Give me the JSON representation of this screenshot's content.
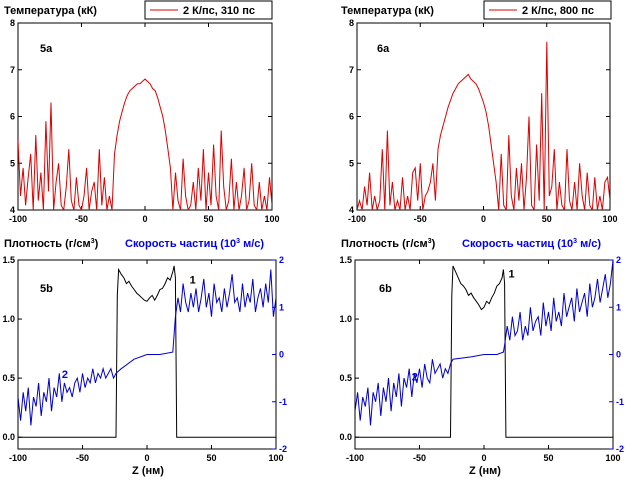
{
  "figure": {
    "colors": {
      "temperature": "#dd0000",
      "density": "#000000",
      "velocity": "#0000cc",
      "axis_blue": "#0000ee"
    }
  },
  "top_titles": [
    "Температура (кК)",
    "Температура (кК)"
  ],
  "bottom_titles": [
    {
      "density": "Плотность (г/см",
      "density_sup": "3",
      "density_tail": ")",
      "velocity": "Скорость частиц (10",
      "velocity_sup": "3",
      "velocity_tail": " м/с)"
    },
    {
      "density": "Плотность (г/см",
      "density_sup": "3",
      "density_tail": ")",
      "velocity": "Скорость частиц (10",
      "velocity_sup": "3",
      "velocity_tail": " м/с)"
    }
  ],
  "xlabel": "Z (нм)",
  "chart_data": [
    {
      "id": "5a",
      "type": "line",
      "panel_label": "5a",
      "legend": "2 К/пс, 310 пс",
      "x_ticks": [
        "-100",
        "-50",
        "0",
        "50",
        "100"
      ],
      "y_ticks": [
        "4",
        "5",
        "6",
        "7",
        "8"
      ],
      "xlim": [
        -100,
        100
      ],
      "ylim": [
        4,
        8
      ],
      "series": [
        {
          "name": "2 К/пс, 310 пс",
          "color": "#dd0000",
          "x": [
            -100,
            -98,
            -96,
            -94,
            -92,
            -90,
            -88,
            -86,
            -84,
            -82,
            -80,
            -78,
            -76,
            -74,
            -72,
            -70,
            -68,
            -66,
            -64,
            -62,
            -60,
            -58,
            -56,
            -54,
            -52,
            -50,
            -48,
            -46,
            -44,
            -42,
            -40,
            -38,
            -36,
            -34,
            -32,
            -30,
            -28,
            -26,
            -24,
            -22,
            -20,
            -18,
            -16,
            -14,
            -12,
            -10,
            -8,
            -6,
            -4,
            -2,
            0,
            2,
            4,
            6,
            8,
            10,
            12,
            14,
            16,
            18,
            20,
            22,
            24,
            26,
            28,
            30,
            32,
            34,
            36,
            38,
            40,
            42,
            44,
            46,
            48,
            50,
            52,
            54,
            56,
            58,
            60,
            62,
            64,
            66,
            68,
            70,
            72,
            74,
            76,
            78,
            80,
            82,
            84,
            86,
            88,
            90,
            92,
            94,
            96,
            98,
            100
          ],
          "y": [
            5.5,
            4.3,
            4.9,
            4.1,
            4.7,
            5.2,
            4.0,
            5.6,
            4.2,
            4.8,
            4.0,
            5.9,
            4.4,
            6.3,
            4.0,
            4.6,
            5.0,
            4.1,
            4.0,
            4.5,
            5.3,
            4.2,
            4.0,
            4.7,
            4.1,
            4.0,
            4.3,
            4.9,
            4.0,
            4.4,
            4.6,
            4.0,
            5.3,
            4.1,
            4.7,
            4.0,
            4.3,
            4.0,
            5.2,
            5.6,
            5.9,
            6.1,
            6.3,
            6.45,
            6.55,
            6.6,
            6.65,
            6.7,
            6.7,
            6.75,
            6.8,
            6.75,
            6.7,
            6.6,
            6.55,
            6.4,
            6.2,
            6.0,
            5.7,
            5.3,
            4.9,
            4.0,
            4.8,
            4.2,
            4.0,
            5.1,
            4.3,
            4.0,
            4.1,
            4.6,
            4.0,
            4.9,
            4.2,
            5.3,
            4.0,
            4.8,
            4.1,
            5.4,
            4.3,
            4.0,
            5.7,
            4.5,
            4.0,
            4.2,
            5.1,
            4.0,
            4.6,
            4.0,
            4.3,
            4.9,
            4.0,
            4.2,
            5.0,
            4.1,
            4.0,
            4.6,
            4.0,
            4.3,
            4.0,
            4.7,
            4.1
          ]
        }
      ]
    },
    {
      "id": "6a",
      "type": "line",
      "panel_label": "6a",
      "legend": "2 К/пс, 800 пс",
      "x_ticks": [
        "-100",
        "-50",
        "0",
        "50",
        "100"
      ],
      "y_ticks": [
        "4",
        "5",
        "6",
        "7",
        "8"
      ],
      "xlim": [
        -100,
        100
      ],
      "ylim": [
        4,
        8
      ],
      "series": [
        {
          "name": "2 К/пс, 800 пс",
          "color": "#dd0000",
          "x": [
            -100,
            -98,
            -96,
            -94,
            -92,
            -90,
            -88,
            -86,
            -84,
            -82,
            -80,
            -78,
            -76,
            -74,
            -72,
            -70,
            -68,
            -66,
            -64,
            -62,
            -60,
            -58,
            -56,
            -54,
            -52,
            -50,
            -48,
            -46,
            -44,
            -42,
            -40,
            -38,
            -36,
            -34,
            -32,
            -30,
            -28,
            -26,
            -24,
            -22,
            -20,
            -18,
            -16,
            -14,
            -12,
            -10,
            -8,
            -6,
            -4,
            -2,
            0,
            2,
            4,
            6,
            8,
            10,
            12,
            14,
            16,
            18,
            20,
            22,
            24,
            26,
            28,
            30,
            32,
            34,
            36,
            38,
            40,
            42,
            44,
            46,
            48,
            50,
            52,
            54,
            56,
            58,
            60,
            62,
            64,
            66,
            68,
            70,
            72,
            74,
            76,
            78,
            80,
            82,
            84,
            86,
            88,
            90,
            92,
            94,
            96,
            98,
            100
          ],
          "y": [
            4.0,
            4.2,
            4.0,
            4.5,
            4.1,
            4.8,
            4.0,
            4.3,
            4.0,
            4.2,
            5.3,
            4.0,
            5.7,
            4.1,
            4.6,
            4.0,
            4.2,
            4.0,
            4.7,
            4.0,
            4.3,
            4.0,
            4.8,
            4.9,
            4.2,
            5.0,
            4.0,
            4.3,
            4.4,
            4.6,
            5.0,
            4.2,
            5.3,
            5.6,
            5.8,
            6.0,
            6.2,
            6.35,
            6.5,
            6.6,
            6.7,
            6.75,
            6.8,
            6.85,
            6.9,
            6.8,
            6.75,
            6.7,
            6.6,
            6.45,
            6.3,
            6.1,
            5.8,
            5.4,
            5.0,
            4.6,
            4.0,
            5.2,
            4.1,
            4.0,
            5.6,
            4.3,
            4.0,
            4.9,
            4.2,
            5.0,
            4.0,
            4.7,
            6.0,
            4.1,
            4.0,
            5.4,
            4.2,
            6.5,
            4.0,
            7.6,
            4.3,
            4.5,
            5.3,
            4.0,
            4.6,
            4.1,
            4.0,
            5.3,
            4.2,
            4.0,
            4.6,
            4.0,
            5.0,
            4.3,
            4.0,
            4.8,
            4.1,
            4.0,
            4.7,
            4.0,
            4.3,
            4.0,
            4.6,
            4.7,
            4.2
          ]
        }
      ]
    },
    {
      "id": "5b",
      "type": "line",
      "panel_label": "5b",
      "x_ticks": [
        "-100",
        "-50",
        "0",
        "50",
        "100"
      ],
      "y_left_ticks": [
        "0.0",
        "0.5",
        "1.0",
        "1.5"
      ],
      "y_right_ticks": [
        "-2",
        "-1",
        "0",
        "1",
        "2"
      ],
      "xlim": [
        -100,
        100
      ],
      "ylim_left": [
        -0.1,
        1.5
      ],
      "ylim_right": [
        -2,
        2
      ],
      "curve_labels": [
        {
          "text": "1",
          "x": 33,
          "y_left": 1.3,
          "axis": "left",
          "color": "#000000"
        },
        {
          "text": "2",
          "x": -66,
          "y_left": 0.5,
          "axis": "left",
          "color": "#0000ee"
        }
      ],
      "series": [
        {
          "name": "1",
          "axis": "left",
          "color": "#000000",
          "x": [
            -100,
            -80,
            -60,
            -40,
            -30,
            -24,
            -23,
            -22,
            -20,
            -18,
            -16,
            -14,
            -12,
            -10,
            -8,
            -6,
            -4,
            -2,
            0,
            2,
            4,
            6,
            8,
            10,
            12,
            14,
            16,
            18,
            20,
            21,
            22,
            23,
            30,
            40,
            60,
            80,
            100
          ],
          "y": [
            0.0,
            0.0,
            0.0,
            0.0,
            0.0,
            0.0,
            1.2,
            1.42,
            1.38,
            1.35,
            1.3,
            1.32,
            1.28,
            1.25,
            1.22,
            1.2,
            1.18,
            1.16,
            1.15,
            1.18,
            1.2,
            1.16,
            1.2,
            1.25,
            1.26,
            1.3,
            1.35,
            1.33,
            1.4,
            1.45,
            1.35,
            0.0,
            0.0,
            0.0,
            0.0,
            0.0,
            0.0
          ]
        },
        {
          "name": "2",
          "axis": "right",
          "color": "#0000cc",
          "x": [
            -100,
            -98,
            -96,
            -94,
            -92,
            -90,
            -88,
            -86,
            -84,
            -82,
            -80,
            -78,
            -76,
            -74,
            -72,
            -70,
            -68,
            -66,
            -64,
            -62,
            -60,
            -58,
            -56,
            -54,
            -52,
            -50,
            -48,
            -46,
            -44,
            -42,
            -40,
            -38,
            -36,
            -34,
            -32,
            -30,
            -28,
            -26,
            -24,
            -22,
            -20,
            -10,
            0,
            10,
            20,
            22,
            24,
            26,
            28,
            30,
            32,
            34,
            36,
            38,
            40,
            42,
            44,
            46,
            48,
            50,
            52,
            54,
            56,
            58,
            60,
            62,
            64,
            66,
            68,
            70,
            72,
            74,
            76,
            78,
            80,
            82,
            84,
            86,
            88,
            90,
            92,
            94,
            96,
            98,
            100
          ],
          "y": [
            -0.9,
            -1.4,
            -0.8,
            -1.2,
            -0.7,
            -1.5,
            -0.9,
            -1.1,
            -0.6,
            -1.3,
            -0.8,
            -1.0,
            -0.5,
            -1.2,
            -0.7,
            -0.9,
            -0.4,
            -1.0,
            -0.6,
            -0.8,
            -0.7,
            -0.9,
            -0.6,
            -0.5,
            -0.8,
            -0.4,
            -0.7,
            -0.5,
            -0.6,
            -0.3,
            -0.6,
            -0.4,
            -0.5,
            -0.3,
            -0.5,
            -0.4,
            -0.3,
            -0.5,
            -0.4,
            -0.35,
            -0.3,
            -0.1,
            0.0,
            0.0,
            0.05,
            0.8,
            1.2,
            0.9,
            1.5,
            1.1,
            0.9,
            1.3,
            1.0,
            1.4,
            0.9,
            1.2,
            1.6,
            1.0,
            1.3,
            0.8,
            1.5,
            1.1,
            1.2,
            0.9,
            1.4,
            1.0,
            1.3,
            1.7,
            1.1,
            1.2,
            0.9,
            1.5,
            1.0,
            1.3,
            1.1,
            1.6,
            0.9,
            1.2,
            1.4,
            1.0,
            1.5,
            1.1,
            1.8,
            0.8,
            1.2
          ]
        }
      ]
    },
    {
      "id": "6b",
      "type": "line",
      "panel_label": "6b",
      "x_ticks": [
        "-100",
        "-50",
        "0",
        "50",
        "100"
      ],
      "y_left_ticks": [
        "0.0",
        "0.5",
        "1.0",
        "1.5"
      ],
      "y_right_ticks": [
        "-2",
        "-1",
        "0",
        "1",
        "2"
      ],
      "xlim": [
        -100,
        100
      ],
      "ylim_left": [
        -0.1,
        1.5
      ],
      "ylim_right": [
        -2,
        2
      ],
      "curve_labels": [
        {
          "text": "1",
          "x": 19,
          "y_left": 1.35,
          "axis": "left",
          "color": "#000000"
        },
        {
          "text": "2",
          "x": -56,
          "y_left": 0.48,
          "axis": "left",
          "color": "#0000ee"
        }
      ],
      "series": [
        {
          "name": "1",
          "axis": "left",
          "color": "#000000",
          "x": [
            -100,
            -80,
            -60,
            -40,
            -28,
            -26,
            -25,
            -24,
            -22,
            -20,
            -18,
            -16,
            -14,
            -12,
            -10,
            -8,
            -6,
            -4,
            -2,
            0,
            2,
            4,
            6,
            8,
            10,
            12,
            14,
            15,
            16,
            17,
            30,
            50,
            80,
            100
          ],
          "y": [
            0.0,
            0.0,
            0.0,
            0.0,
            0.0,
            0.0,
            1.2,
            1.45,
            1.4,
            1.35,
            1.3,
            1.28,
            1.25,
            1.2,
            1.22,
            1.18,
            1.15,
            1.12,
            1.08,
            1.1,
            1.15,
            1.13,
            1.18,
            1.22,
            1.28,
            1.3,
            1.35,
            1.42,
            1.3,
            0.0,
            0.0,
            0.0,
            0.0,
            0.0
          ]
        },
        {
          "name": "2",
          "axis": "right",
          "color": "#0000cc",
          "x": [
            -100,
            -98,
            -96,
            -94,
            -92,
            -90,
            -88,
            -86,
            -84,
            -82,
            -80,
            -78,
            -76,
            -74,
            -72,
            -70,
            -68,
            -66,
            -64,
            -62,
            -60,
            -58,
            -56,
            -54,
            -52,
            -50,
            -48,
            -46,
            -44,
            -42,
            -40,
            -38,
            -36,
            -34,
            -32,
            -30,
            -28,
            -26,
            -24,
            -10,
            0,
            10,
            15,
            16,
            18,
            20,
            22,
            24,
            26,
            28,
            30,
            32,
            34,
            36,
            38,
            40,
            42,
            44,
            46,
            48,
            50,
            52,
            54,
            56,
            58,
            60,
            62,
            64,
            66,
            68,
            70,
            72,
            74,
            76,
            78,
            80,
            82,
            84,
            86,
            88,
            90,
            92,
            94,
            96,
            98,
            100
          ],
          "y": [
            -1.2,
            -0.8,
            -1.4,
            -0.9,
            -1.1,
            -0.7,
            -1.5,
            -0.8,
            -1.0,
            -0.6,
            -1.3,
            -0.7,
            -1.0,
            -0.5,
            -1.2,
            -0.6,
            -0.9,
            -0.4,
            -1.1,
            -0.5,
            -0.7,
            -0.3,
            -0.9,
            -0.4,
            -0.6,
            -0.3,
            -0.7,
            -0.2,
            -0.5,
            -0.6,
            -0.1,
            -0.4,
            -0.3,
            -0.2,
            -0.5,
            -0.3,
            -0.4,
            -0.2,
            -0.1,
            -0.05,
            0.0,
            0.0,
            0.05,
            0.2,
            0.6,
            0.3,
            0.8,
            0.4,
            0.5,
            0.9,
            0.3,
            0.6,
            0.4,
            1.0,
            0.5,
            0.7,
            0.8,
            0.4,
            1.1,
            0.6,
            0.9,
            0.5,
            1.2,
            0.7,
            0.9,
            0.6,
            1.3,
            0.8,
            1.0,
            1.2,
            0.7,
            1.4,
            0.9,
            1.1,
            1.3,
            0.8,
            1.5,
            1.0,
            1.2,
            1.6,
            1.1,
            1.4,
            1.7,
            1.2,
            1.5,
            2.0
          ]
        }
      ]
    }
  ]
}
